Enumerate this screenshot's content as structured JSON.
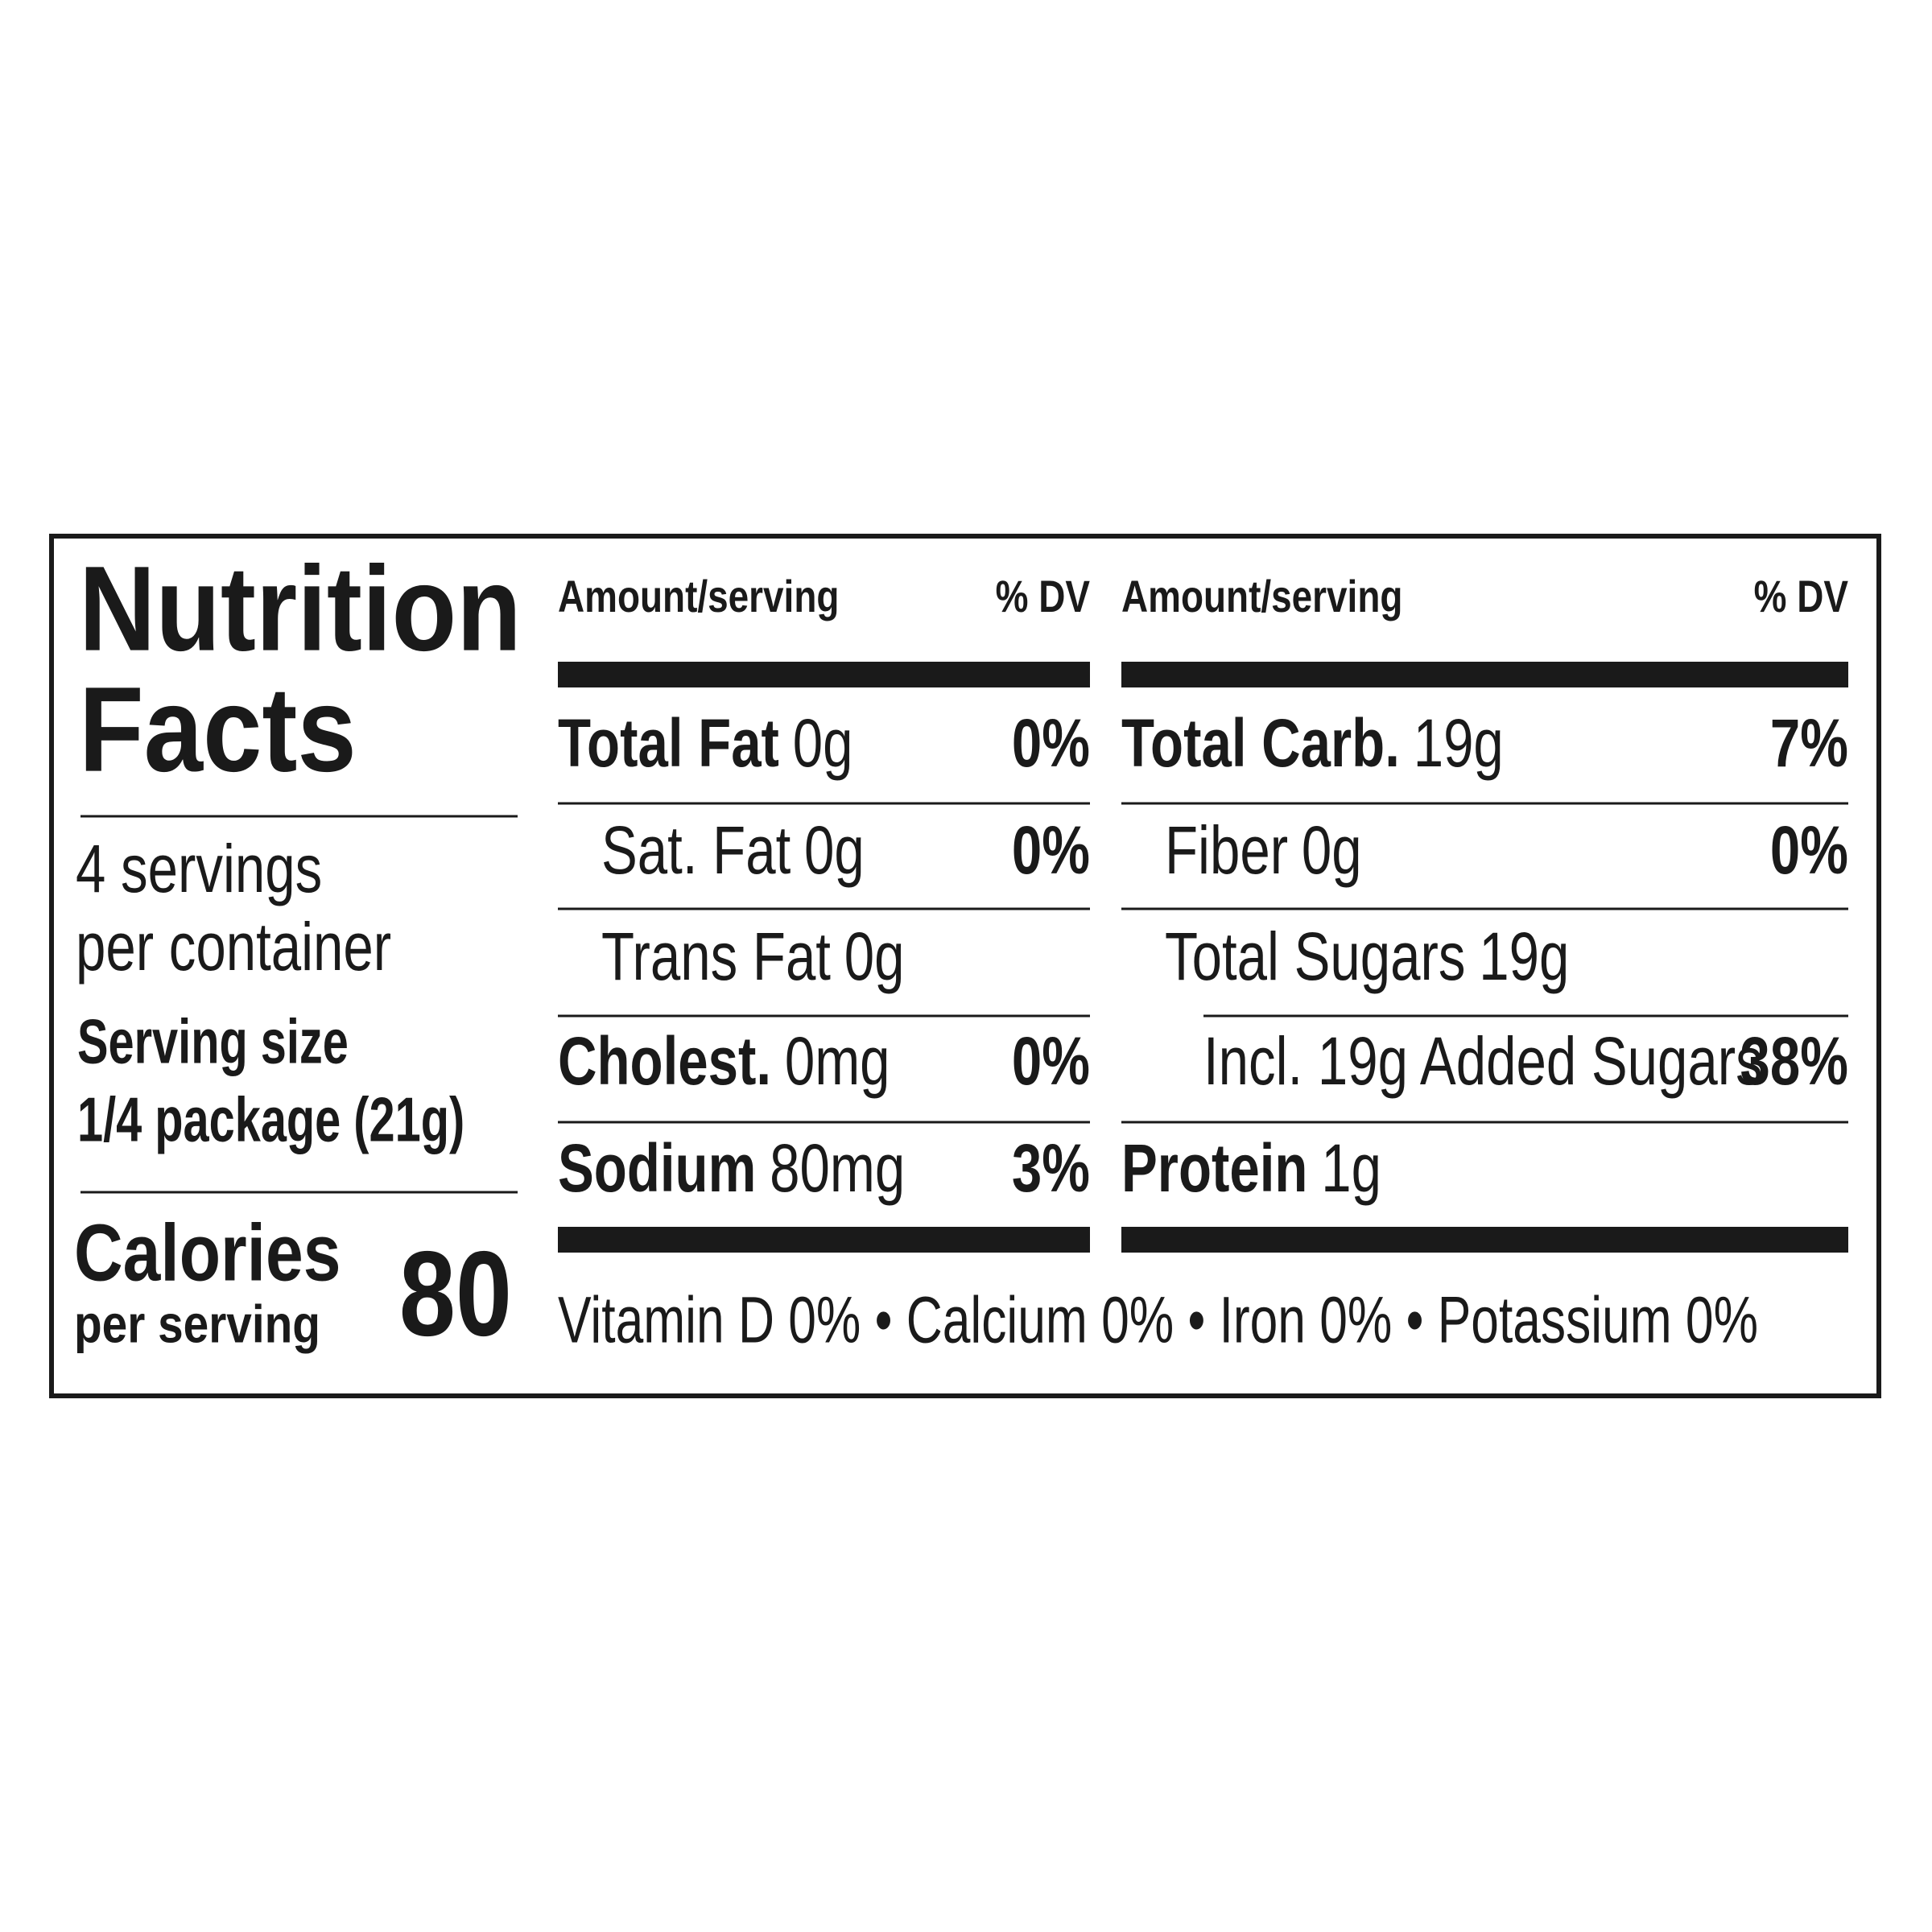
{
  "title": [
    "Nutrition",
    "Facts"
  ],
  "servings": [
    "4 servings",
    "per container"
  ],
  "serving_size": {
    "label": "Serving size",
    "value": "1/4 package (21g)"
  },
  "calories": {
    "label": "Calories",
    "sublabel": "per serving",
    "value": 80
  },
  "columns": [
    {
      "amount_header": "Amount/serving",
      "dv_header": "% DV",
      "rows": [
        {
          "label": "Total Fat",
          "amount": "0g",
          "dv": "0%",
          "level": 0
        },
        {
          "label": "Sat. Fat",
          "amount": "0g",
          "dv": "0%",
          "level": 1
        },
        {
          "label": "Trans Fat",
          "amount": "0g",
          "level": 1
        },
        {
          "label": "Cholest.",
          "amount": "0mg",
          "dv": "0%",
          "level": 0
        },
        {
          "label": "Sodium",
          "amount": "80mg",
          "dv": "3%",
          "level": 0
        }
      ]
    },
    {
      "amount_header": "Amount/serving",
      "dv_header": "% DV",
      "rows": [
        {
          "label": "Total Carb.",
          "amount": "19g",
          "dv": "7%",
          "level": 0
        },
        {
          "label": "Fiber",
          "amount": "0g",
          "dv": "0%",
          "level": 1
        },
        {
          "label": "Total Sugars",
          "amount": "19g",
          "level": 1
        },
        {
          "label": "Incl. 19g Added Sugars",
          "dv": "38%",
          "level": 2
        },
        {
          "label": "Protein",
          "amount": "1g",
          "level": 0
        }
      ]
    }
  ],
  "footer": "Vitamin D 0% • Calcium 0% • Iron 0% • Potassium 0%"
}
